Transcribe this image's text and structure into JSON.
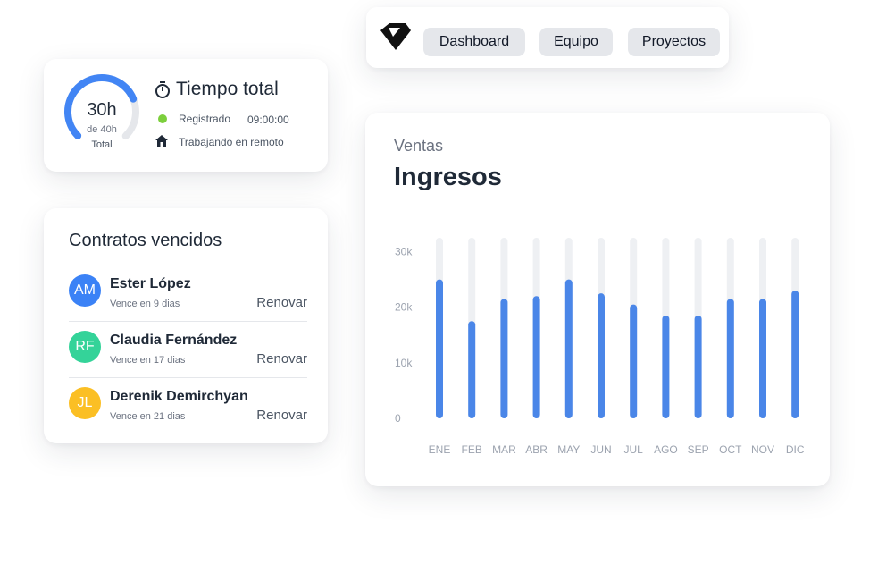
{
  "nav": {
    "logo_icon": "diamond-logo",
    "tabs": [
      {
        "label": "Dashboard"
      },
      {
        "label": "Equipo"
      },
      {
        "label": "Proyectos"
      }
    ]
  },
  "time": {
    "gauge_value": "30h",
    "gauge_total": "de 40h",
    "gauge_label": "Total",
    "gauge_fraction": 0.75,
    "title": "Tiempo total",
    "title_icon": "stopwatch-icon",
    "registered_label": "Registrado",
    "registered_value": "09:00:00",
    "registered_color": "#7ccf3c",
    "remote_icon": "home-icon",
    "remote_label": "Trabajando en remoto",
    "accent": "#4285f4"
  },
  "contracts": {
    "title": "Contratos vencidos",
    "items": [
      {
        "initials": "AM",
        "name": "Ester López",
        "due": "Vence en 9 dias",
        "action": "Renovar",
        "color": "#3b82f6"
      },
      {
        "initials": "RF",
        "name": "Claudia Fernández",
        "due": "Vence en 17 dias",
        "action": "Renovar",
        "color": "#34d399"
      },
      {
        "initials": "JL",
        "name": "Derenik Demirchyan",
        "due": "Vence en 21 dias",
        "action": "Renovar",
        "color": "#fbbf24"
      }
    ]
  },
  "chart": {
    "subtitle": "Ventas",
    "title": "Ingresos"
  },
  "chart_data": {
    "type": "bar",
    "title": "Ingresos",
    "subtitle": "Ventas",
    "categories": [
      "ENE",
      "FEB",
      "MAR",
      "ABR",
      "MAY",
      "JUN",
      "JUL",
      "AGO",
      "SEP",
      "OCT",
      "NOV",
      "DIC"
    ],
    "values": [
      25000,
      17500,
      21500,
      22000,
      25000,
      22500,
      20500,
      18500,
      18500,
      21500,
      21500,
      23000
    ],
    "max_values": [
      32500,
      32500,
      32500,
      32500,
      32500,
      32500,
      32500,
      32500,
      32500,
      32500,
      32500,
      32500
    ],
    "ylim": [
      0,
      32500
    ],
    "yticks": [
      0,
      10000,
      20000,
      30000
    ],
    "ytick_labels": [
      "0",
      "10k",
      "20k",
      "30k"
    ],
    "bar_color": "#4a86e8",
    "track_color": "#eef0f3",
    "grid": false
  }
}
